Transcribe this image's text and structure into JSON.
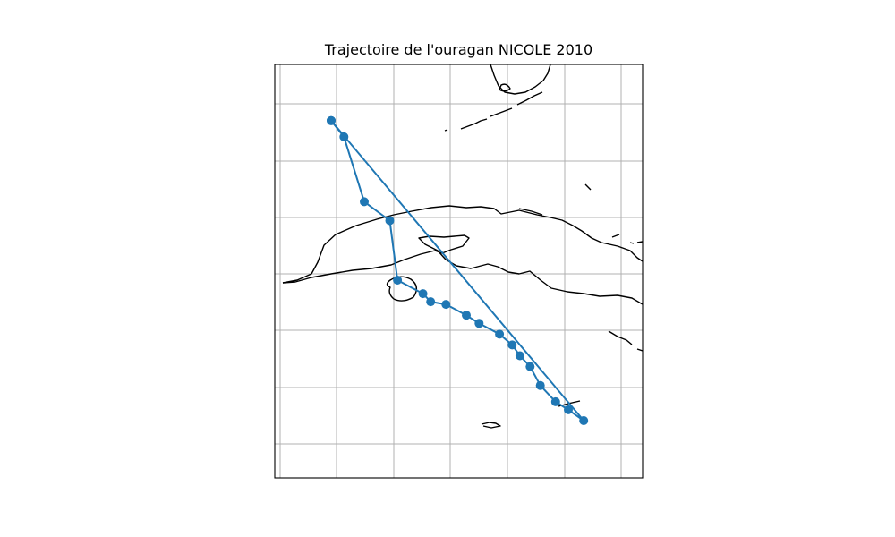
{
  "map": {
    "title": "Trajectoire de l'ouragan NICOLE 2010",
    "grid": true,
    "colors": {
      "track": "#1f77b4",
      "coast": "#000000",
      "grid": "#b0b0b0"
    },
    "track_points": [
      {
        "seq": 1,
        "lon": 80.0,
        "lat": 29.0
      },
      {
        "seq": 2,
        "lon": 80.5,
        "lat": 28.4
      },
      {
        "seq": 3,
        "lon": 81.3,
        "lat": 26.0
      },
      {
        "seq": 4,
        "lon": 82.3,
        "lat": 25.3
      },
      {
        "seq": 5,
        "lon": 82.6,
        "lat": 23.1
      },
      {
        "seq": 6,
        "lon": 83.6,
        "lat": 22.6
      },
      {
        "seq": 7,
        "lon": 83.9,
        "lat": 22.3
      },
      {
        "seq": 8,
        "lon": 84.5,
        "lat": 22.2
      },
      {
        "seq": 9,
        "lon": 85.3,
        "lat": 21.8
      },
      {
        "seq": 10,
        "lon": 85.8,
        "lat": 21.5
      },
      {
        "seq": 11,
        "lon": 86.6,
        "lat": 21.1
      },
      {
        "seq": 12,
        "lon": 87.1,
        "lat": 20.7
      },
      {
        "seq": 13,
        "lon": 87.4,
        "lat": 20.3
      },
      {
        "seq": 14,
        "lon": 87.8,
        "lat": 19.9
      },
      {
        "seq": 15,
        "lon": 88.2,
        "lat": 19.2
      },
      {
        "seq": 16,
        "lon": 88.8,
        "lat": 18.6
      },
      {
        "seq": 17,
        "lon": 89.3,
        "lat": 18.3
      },
      {
        "seq": 18,
        "lon": 89.9,
        "lat": 17.9
      },
      {
        "seq": 19,
        "lon": 80.0,
        "lat": 29.0
      }
    ]
  }
}
